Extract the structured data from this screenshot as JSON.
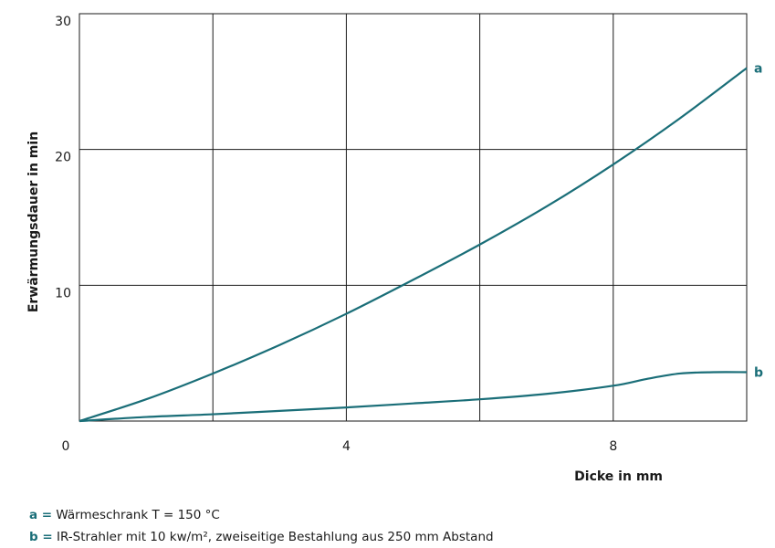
{
  "chart_data": {
    "type": "line",
    "xlabel": "Dicke in mm",
    "ylabel": "Erwärmungsdauer in min",
    "xlim": [
      0,
      10
    ],
    "ylim": [
      0,
      30
    ],
    "x_tick_labels": [
      "0",
      "4",
      "8"
    ],
    "y_tick_labels": [
      "10",
      "20",
      "30"
    ],
    "grid": true,
    "series_color": "#1a6e78",
    "series": [
      {
        "name": "a",
        "x": [
          0,
          1,
          2,
          3,
          4,
          5,
          6,
          7,
          8,
          9,
          10
        ],
        "values": [
          0,
          1.6,
          3.5,
          5.6,
          7.9,
          10.4,
          13.0,
          15.8,
          18.9,
          22.3,
          26.0
        ]
      },
      {
        "name": "b",
        "x": [
          0,
          1,
          2,
          3,
          4,
          5,
          6,
          7,
          8,
          8.5,
          9,
          9.5,
          10
        ],
        "values": [
          0,
          0.3,
          0.5,
          0.75,
          1.0,
          1.3,
          1.6,
          2.0,
          2.6,
          3.1,
          3.5,
          3.6,
          3.6
        ]
      }
    ]
  },
  "legend": [
    {
      "key": "a =",
      "text": "Wärmeschrank T = 150 °C"
    },
    {
      "key": "b =",
      "text": "IR-Strahler mit 10 kw/m², zweiseitige Bestahlung aus 250 mm Abstand"
    }
  ]
}
